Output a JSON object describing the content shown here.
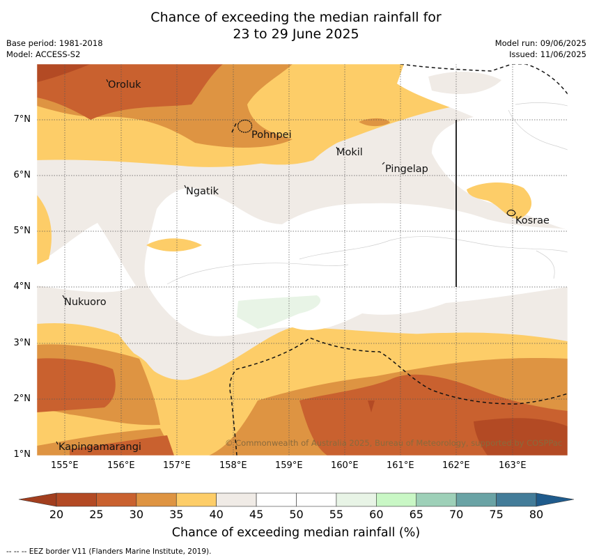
{
  "title": {
    "line1": "Chance of exceeding the median rainfall for",
    "line2": "23 to 29 June 2025"
  },
  "meta": {
    "base_period": "Base period: 1981-2018",
    "model": "Model: ACCESS-S2",
    "model_run": "Model run: 09/06/2025",
    "issued": "Issued: 11/06/2025"
  },
  "axes": {
    "lon_labels": [
      "155°E",
      "156°E",
      "157°E",
      "158°E",
      "159°E",
      "160°E",
      "161°E",
      "162°E",
      "163°E"
    ],
    "lat_labels": [
      "7°N",
      "6°N",
      "5°N",
      "4°N",
      "3°N",
      "2°N",
      "1°N"
    ]
  },
  "places": {
    "oroluk": "Oroluk",
    "pohnpei": "Pohnpei",
    "mokil": "Mokil",
    "pingelap": "Pingelap",
    "ngatik": "Ngatik",
    "kosrae": "Kosrae",
    "nukuoro": "Nukuoro",
    "kapingamarangi": "Kapingamarangi"
  },
  "copyright": "© Commonwealth of Australia 2025, Bureau of Meteorology, supported by COSPPac",
  "colorbar": {
    "title": "Chance of exceeding median rainfall (%)",
    "labels": [
      "20",
      "25",
      "30",
      "35",
      "40",
      "45",
      "50",
      "55",
      "60",
      "65",
      "70",
      "75",
      "80"
    ],
    "colors": [
      "#b34a24",
      "#c9612f",
      "#de9442",
      "#fdcd68",
      "#f0ebe6",
      "#ffffff",
      "#ffffff",
      "#e8f4e6",
      "#c9f7c5",
      "#9ed0b8",
      "#6aa3a5",
      "#437c99"
    ],
    "low_extend_color": "#a23e1e",
    "high_extend_color": "#1f5b8c"
  },
  "footer": "-- -- -- EEZ border V11 (Flanders Marine Institute, 2019)."
}
